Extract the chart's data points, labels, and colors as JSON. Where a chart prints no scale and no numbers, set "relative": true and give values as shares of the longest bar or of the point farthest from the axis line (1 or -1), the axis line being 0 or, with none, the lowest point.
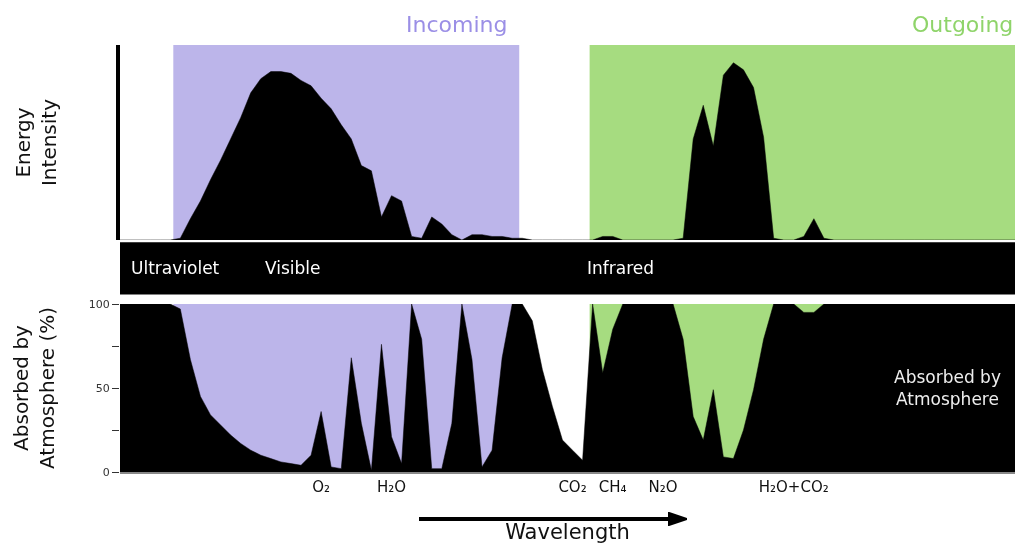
{
  "chart_data": [
    {
      "type": "area",
      "relative": true,
      "ylabel": "Energy Intensity",
      "categories": [
        null,
        null,
        null,
        null,
        null,
        null,
        null,
        null,
        null,
        null,
        null,
        null,
        null,
        null,
        null,
        null,
        null,
        null,
        null,
        null,
        null,
        null,
        null,
        null,
        null,
        null,
        null,
        null,
        null,
        null,
        null,
        null,
        null,
        null,
        null,
        null,
        null,
        null,
        null,
        null,
        null,
        null,
        null,
        null,
        null,
        null,
        null,
        null,
        null,
        null,
        null,
        null,
        null,
        null,
        null,
        null,
        null,
        null,
        null,
        null,
        null,
        null,
        null,
        null,
        null,
        null,
        null,
        null,
        null,
        null,
        null,
        null,
        null,
        null,
        null,
        null,
        null,
        null,
        null,
        null,
        null,
        null,
        null,
        null,
        null,
        null,
        null,
        null,
        null,
        null
      ],
      "series": [
        {
          "color": "#000000",
          "values": [
            0,
            0,
            0,
            0,
            0,
            0,
            0.01,
            0.12,
            0.22,
            0.34,
            0.45,
            0.57,
            0.69,
            0.83,
            0.91,
            0.95,
            0.95,
            0.94,
            0.9,
            0.87,
            0.8,
            0.74,
            0.65,
            0.57,
            0.42,
            0.39,
            0.13,
            0.25,
            0.22,
            0.02,
            0.01,
            0.13,
            0.09,
            0.03,
            0,
            0.03,
            0.03,
            0.02,
            0.02,
            0.01,
            0.01,
            0,
            0,
            0,
            0,
            0,
            0,
            0,
            0.02,
            0.02,
            0,
            0,
            0,
            0,
            0,
            0,
            0.01,
            0.57,
            0.76,
            0.53,
            0.93,
            1,
            0.96,
            0.86,
            0.58,
            0.01,
            0,
            0,
            0.02,
            0.12,
            0.01,
            0,
            0,
            0,
            0,
            0,
            0,
            0,
            0,
            0,
            0,
            0,
            0,
            0,
            0,
            0,
            0,
            0,
            0,
            0
          ]
        }
      ],
      "annotations": [
        "Incoming",
        "Outgoing",
        "Ultraviolet",
        "Visible",
        "Infrared"
      ]
    },
    {
      "type": "area",
      "ylabel": "Absorbed by Atmosphere (%)",
      "xlabel": "Wavelength",
      "categories": [
        null,
        null,
        null,
        null,
        null,
        null,
        null,
        null,
        null,
        null,
        null,
        null,
        null,
        null,
        null,
        null,
        null,
        null,
        null,
        null,
        "O₂",
        null,
        null,
        null,
        null,
        null,
        null,
        "H₂O",
        null,
        null,
        null,
        null,
        null,
        null,
        null,
        null,
        null,
        null,
        null,
        null,
        null,
        null,
        null,
        null,
        null,
        "CO₂",
        null,
        null,
        null,
        "CH₄",
        null,
        null,
        null,
        null,
        "N₂O",
        null,
        null,
        null,
        null,
        null,
        null,
        null,
        null,
        null,
        null,
        null,
        null,
        "H₂O+CO₂",
        null,
        null,
        null,
        null,
        null,
        null,
        null,
        null,
        null,
        null,
        null,
        null,
        null,
        null,
        null,
        null,
        null,
        null,
        null,
        null,
        null,
        null
      ],
      "series": [
        {
          "color": "#000000",
          "values": [
            100,
            100,
            100,
            100,
            100,
            100,
            97,
            67,
            45,
            34,
            28,
            22,
            17,
            13,
            10,
            8,
            6,
            5,
            4,
            10,
            36,
            3,
            2,
            68,
            29,
            1,
            76,
            21,
            5,
            100,
            79,
            2,
            2,
            29,
            100,
            67,
            3,
            13,
            68,
            100,
            100,
            90,
            61,
            39,
            19,
            13,
            7,
            100,
            59,
            85,
            100,
            100,
            100,
            100,
            100,
            100,
            79,
            33,
            19,
            49,
            9,
            8,
            25,
            49,
            79,
            100,
            100,
            100,
            95,
            95,
            100,
            100,
            100,
            100,
            100,
            100,
            100,
            100,
            100,
            100,
            100,
            100,
            100,
            100,
            100,
            100,
            100,
            100,
            100,
            100
          ]
        }
      ],
      "ylim": [
        0,
        100
      ],
      "yticks": [
        0,
        {
          "value": 25,
          "label": null
        },
        50,
        {
          "value": 75,
          "label": null
        },
        100
      ],
      "annotations": [
        "Absorbed by Atmosphere"
      ]
    }
  ]
}
